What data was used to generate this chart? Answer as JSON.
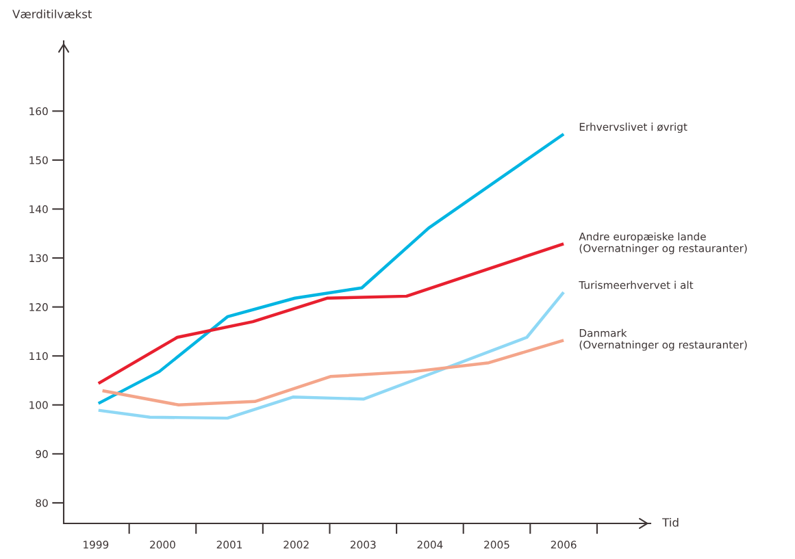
{
  "chart_data": {
    "type": "line",
    "xlabel": "Tid",
    "ylabel": "Værditilvækst",
    "xlim": [
      1998.52,
      2007.3
    ],
    "ylim": [
      75.8,
      174.3
    ],
    "xticks": [
      1999,
      2000,
      2001,
      2002,
      2003,
      2004,
      2005,
      2006
    ],
    "yticks": [
      80,
      90,
      100,
      110,
      120,
      130,
      140,
      150,
      160
    ],
    "series": [
      {
        "name": "Erhvervslivet i øvrigt",
        "color": "#00b5e2",
        "x": [
          1999.04,
          1999.95,
          2000.97,
          2001.98,
          2002.98,
          2003.98,
          2006.0
        ],
        "values": [
          100.3,
          106.8,
          118.0,
          121.8,
          123.9,
          136.1,
          155.3
        ]
      },
      {
        "name": "Andre europæiske lande\n(Overnatninger og restauranter)",
        "color": "#e8202f",
        "x": [
          1999.04,
          2000.22,
          2001.35,
          2002.46,
          2003.65,
          2006.0
        ],
        "values": [
          104.4,
          113.8,
          117.0,
          121.8,
          122.2,
          132.9
        ]
      },
      {
        "name": "Turismeerhvervet i alt",
        "color": "#8fd8f5",
        "x": [
          1999.04,
          1999.81,
          2000.97,
          2001.95,
          2003.01,
          2004.04,
          2005.45,
          2006.0
        ],
        "values": [
          98.9,
          97.5,
          97.3,
          101.6,
          101.2,
          106.5,
          113.8,
          123.0
        ]
      },
      {
        "name": "Danmark\n(Overnatninger og restauranter)",
        "color": "#f4a58a",
        "x": [
          1999.1,
          2000.24,
          2001.38,
          2002.51,
          2003.75,
          2004.88,
          2006.0
        ],
        "values": [
          102.9,
          100.0,
          100.7,
          105.8,
          106.8,
          108.6,
          113.2
        ]
      }
    ]
  }
}
